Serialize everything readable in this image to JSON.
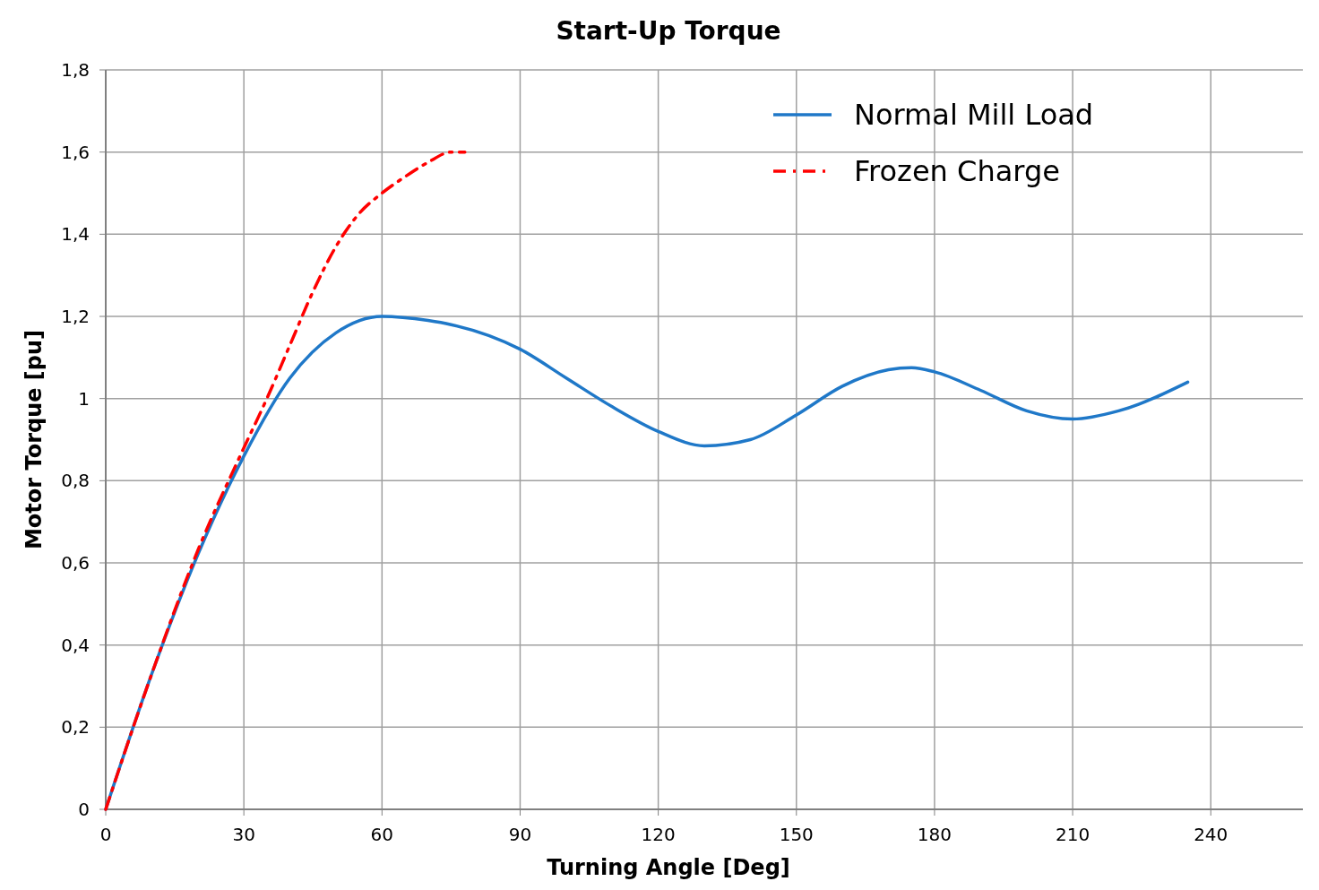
{
  "chart_data": {
    "type": "line",
    "title": "Start-Up Torque",
    "xlabel": "Turning Angle [Deg]",
    "ylabel": "Motor Torque [pu]",
    "xlim": [
      0,
      260
    ],
    "xticks": [
      0,
      30,
      60,
      90,
      120,
      150,
      180,
      210,
      240
    ],
    "ylim": [
      0,
      1.8
    ],
    "yticks": [
      0,
      {
        "value": 0.2,
        "label": "0,2"
      },
      {
        "value": 0.4,
        "label": "0,4"
      },
      {
        "value": 0.6,
        "label": "0,6"
      },
      {
        "value": 0.8,
        "label": "0,8"
      },
      1,
      {
        "value": 1.2,
        "label": "1,2"
      },
      {
        "value": 1.4,
        "label": "1,4"
      },
      {
        "value": 1.6,
        "label": "1,6"
      },
      {
        "value": 1.8,
        "label": "1,8"
      }
    ],
    "grid": true,
    "legend": "top right",
    "marker": "none",
    "series": [
      {
        "name": "Normal Mill Load",
        "color": "#1f78c8",
        "line_style": "solid",
        "x": [
          0,
          10,
          20,
          30,
          40,
          50,
          60,
          70,
          75,
          90,
          100,
          110,
          120,
          130,
          140,
          150,
          160,
          170,
          175,
          180,
          190,
          200,
          210,
          220,
          235
        ],
        "values": [
          0,
          0.33,
          0.62,
          0.86,
          1.05,
          1.16,
          1.2,
          1.19,
          1.18,
          1.12,
          1.05,
          0.98,
          0.92,
          0.885,
          0.9,
          0.96,
          1.03,
          1.07,
          1.075,
          1.065,
          1.02,
          0.97,
          0.95,
          0.97,
          1.04
        ]
      },
      {
        "name": "Frozen Charge",
        "color": "#ff0000",
        "line_style": "dashed",
        "x": [
          0,
          10,
          20,
          30,
          35,
          40,
          45,
          50,
          55,
          60,
          65,
          70,
          75,
          78
        ],
        "values": [
          0,
          0.33,
          0.63,
          0.88,
          1.0,
          1.13,
          1.26,
          1.37,
          1.45,
          1.5,
          1.54,
          1.575,
          1.6,
          1.6
        ]
      }
    ]
  }
}
